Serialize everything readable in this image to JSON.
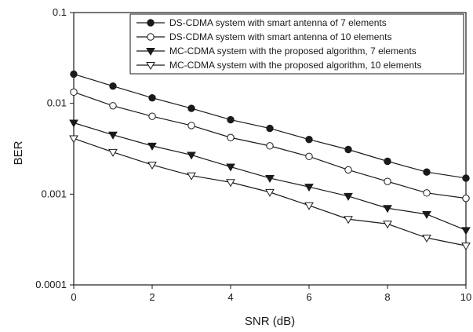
{
  "chart_data": {
    "type": "line",
    "title": "",
    "xlabel": "SNR (dB)",
    "ylabel": "BER",
    "x": [
      0,
      1,
      2,
      3,
      4,
      5,
      6,
      7,
      8,
      9,
      10
    ],
    "xlim": [
      0,
      10
    ],
    "xticks": [
      "0",
      "2",
      "4",
      "6",
      "8",
      "10"
    ],
    "ylim": [
      0.0001,
      0.1
    ],
    "yscale": "log",
    "yticks": [
      "0.0001",
      "0.001",
      "0.01",
      "0.1"
    ],
    "grid": false,
    "legend_position": "top-right",
    "series": [
      {
        "name": "DS-CDMA system with smart antenna of 7 elements",
        "marker": "filled-circle",
        "values": [
          0.021,
          0.0155,
          0.0115,
          0.0088,
          0.0066,
          0.0053,
          0.004,
          0.0031,
          0.0023,
          0.00175,
          0.0015
        ]
      },
      {
        "name": "DS-CDMA system with smart antenna of 10 elements",
        "marker": "open-circle",
        "values": [
          0.0133,
          0.0094,
          0.0072,
          0.0057,
          0.0042,
          0.0034,
          0.0026,
          0.00185,
          0.00138,
          0.00103,
          0.0009
        ]
      },
      {
        "name": "MC-CDMA system with the proposed algorithm, 7 elements",
        "marker": "filled-triangle-down",
        "values": [
          0.0061,
          0.0045,
          0.0034,
          0.0027,
          0.002,
          0.0015,
          0.0012,
          0.00095,
          0.0007,
          0.0006,
          0.0004
        ]
      },
      {
        "name": "MC-CDMA system with the proposed algorithm, 10 elements",
        "marker": "open-triangle-down",
        "values": [
          0.0041,
          0.0029,
          0.0021,
          0.0016,
          0.00135,
          0.00105,
          0.00075,
          0.00053,
          0.00047,
          0.00033,
          0.00027
        ]
      }
    ]
  }
}
